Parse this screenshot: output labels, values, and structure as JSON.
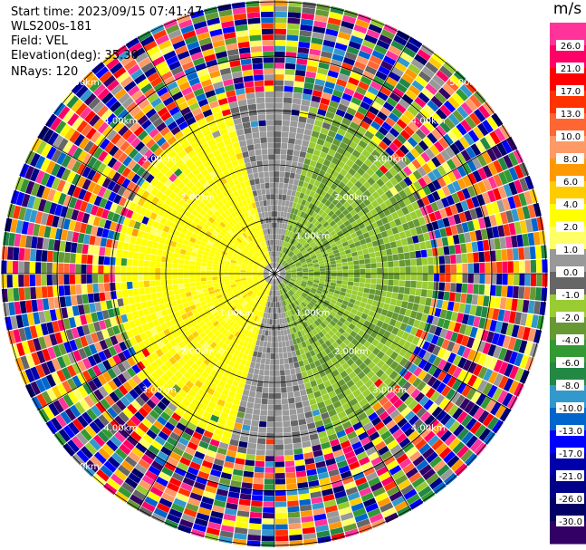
{
  "info": {
    "start_time": "Start time: 2023/09/15 07:41:47",
    "station": "WLS200s-181",
    "field": "Field: VEL",
    "elevation": "Elevation(deg): 35.30",
    "nrays": "NRays: 120"
  },
  "colorbar": {
    "title": "m/s",
    "ticks": [
      "26.0",
      "21.0",
      "17.0",
      "13.0",
      "10.0",
      "8.0",
      "6.0",
      "4.0",
      "2.0",
      "1.0",
      "0.0",
      "-1.0",
      "-2.0",
      "-4.0",
      "-6.0",
      "-8.0",
      "-10.0",
      "-13.0",
      "-17.0",
      "-21.0",
      "-26.0",
      "-30.0"
    ],
    "colors": [
      "#ff3399",
      "#ff0066",
      "#ff0000",
      "#ff3300",
      "#ff6633",
      "#ff9966",
      "#ff9900",
      "#ffcc00",
      "#ffff00",
      "#ffff66",
      "#999999",
      "#666666",
      "#99cc33",
      "#669933",
      "#339933",
      "#228844",
      "#3399cc",
      "#0066cc",
      "#0000ff",
      "#0000aa",
      "#000088",
      "#000066",
      "#330066"
    ]
  },
  "range_labels": [
    {
      "text": "1.00km",
      "ring": 1,
      "angle": -45
    },
    {
      "text": "1.00km",
      "ring": 1,
      "angle": 45
    },
    {
      "text": "1.00km",
      "ring": 1,
      "angle": 135
    },
    {
      "text": "2.00km",
      "ring": 2,
      "angle": -45
    },
    {
      "text": "2.00km",
      "ring": 2,
      "angle": 45
    },
    {
      "text": "2.00km",
      "ring": 2,
      "angle": 135
    },
    {
      "text": "2.00km",
      "ring": 2,
      "angle": -135
    },
    {
      "text": "3.00km",
      "ring": 3,
      "angle": -45
    },
    {
      "text": "3.00km",
      "ring": 3,
      "angle": 45
    },
    {
      "text": "3.00km",
      "ring": 3,
      "angle": 135
    },
    {
      "text": "3.00km",
      "ring": 3,
      "angle": -135
    },
    {
      "text": "4.00km",
      "ring": 4,
      "angle": -45
    },
    {
      "text": "4.00km",
      "ring": 4,
      "angle": 45
    },
    {
      "text": "4.00km",
      "ring": 4,
      "angle": 135
    },
    {
      "text": "4.00km",
      "ring": 4,
      "angle": -135
    },
    {
      "text": "5.00km",
      "ring": 5,
      "angle": -45
    },
    {
      "text": "5.00km",
      "ring": 5,
      "angle": 135
    },
    {
      "text": "5.00km",
      "ring": 5,
      "angle": -135
    }
  ]
}
